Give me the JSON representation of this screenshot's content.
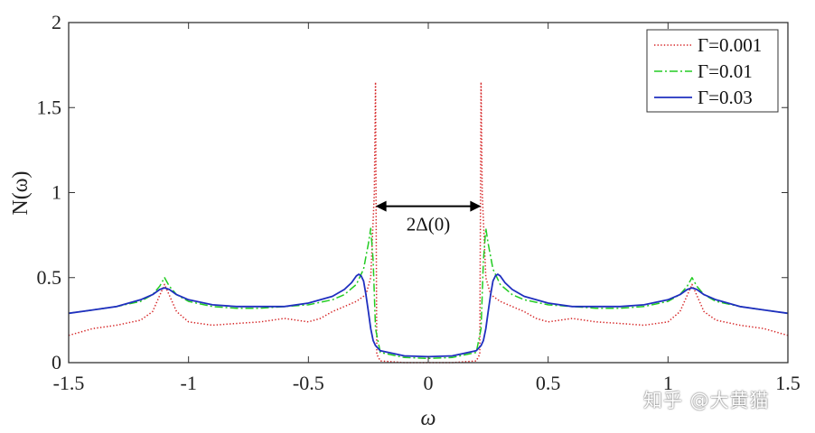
{
  "chart_data": {
    "type": "line",
    "xlabel": "ω",
    "ylabel": "N(ω)",
    "xlim": [
      -1.5,
      1.5
    ],
    "ylim": [
      0,
      2
    ],
    "xticks": [
      "-1.5",
      "-1",
      "-0.5",
      "0",
      "0.5",
      "1",
      "1.5"
    ],
    "yticks": [
      "0",
      "0.5",
      "1",
      "1.5",
      "2"
    ],
    "grid": false,
    "legend_position": "top-right",
    "annotation": {
      "text": "2Δ(0)",
      "x_from": -0.22,
      "x_to": 0.22,
      "y": 0.92
    },
    "series": [
      {
        "name": "Γ=0.001",
        "color": "#d62728",
        "style": "dotted",
        "x": [
          -1.5,
          -1.4,
          -1.3,
          -1.2,
          -1.15,
          -1.1,
          -1.05,
          -1.0,
          -0.9,
          -0.8,
          -0.7,
          -0.6,
          -0.5,
          -0.45,
          -0.4,
          -0.35,
          -0.3,
          -0.26,
          -0.24,
          -0.225,
          -0.22,
          -0.215,
          -0.2,
          -0.1,
          0,
          0.1,
          0.2,
          0.215,
          0.22,
          0.225,
          0.24,
          0.26,
          0.3,
          0.35,
          0.4,
          0.45,
          0.5,
          0.6,
          0.7,
          0.8,
          0.9,
          1.0,
          1.05,
          1.1,
          1.15,
          1.2,
          1.3,
          1.4,
          1.5
        ],
        "y": [
          0.16,
          0.2,
          0.22,
          0.25,
          0.3,
          0.46,
          0.3,
          0.24,
          0.22,
          0.23,
          0.24,
          0.26,
          0.24,
          0.26,
          0.3,
          0.33,
          0.36,
          0.4,
          0.5,
          1.0,
          1.65,
          0.05,
          0.01,
          0.0,
          0.0,
          0.0,
          0.01,
          0.05,
          1.65,
          1.0,
          0.5,
          0.4,
          0.36,
          0.33,
          0.3,
          0.26,
          0.24,
          0.26,
          0.24,
          0.23,
          0.22,
          0.24,
          0.3,
          0.46,
          0.3,
          0.25,
          0.22,
          0.2,
          0.16
        ]
      },
      {
        "name": "Γ=0.01",
        "color": "#22cc22",
        "style": "dashdot",
        "x": [
          -1.5,
          -1.4,
          -1.3,
          -1.2,
          -1.15,
          -1.12,
          -1.1,
          -1.08,
          -1.05,
          -1.0,
          -0.9,
          -0.8,
          -0.7,
          -0.6,
          -0.5,
          -0.4,
          -0.35,
          -0.3,
          -0.27,
          -0.25,
          -0.24,
          -0.23,
          -0.22,
          -0.2,
          -0.1,
          0,
          0.1,
          0.2,
          0.22,
          0.23,
          0.24,
          0.25,
          0.27,
          0.3,
          0.35,
          0.4,
          0.5,
          0.6,
          0.7,
          0.8,
          0.9,
          1.0,
          1.05,
          1.08,
          1.1,
          1.12,
          1.15,
          1.2,
          1.3,
          1.4,
          1.5
        ],
        "y": [
          0.29,
          0.31,
          0.33,
          0.36,
          0.4,
          0.45,
          0.5,
          0.45,
          0.4,
          0.36,
          0.33,
          0.32,
          0.32,
          0.33,
          0.34,
          0.37,
          0.4,
          0.46,
          0.55,
          0.7,
          0.79,
          0.6,
          0.2,
          0.06,
          0.03,
          0.025,
          0.03,
          0.06,
          0.2,
          0.6,
          0.79,
          0.7,
          0.55,
          0.46,
          0.4,
          0.37,
          0.34,
          0.33,
          0.32,
          0.32,
          0.33,
          0.36,
          0.4,
          0.45,
          0.5,
          0.45,
          0.4,
          0.36,
          0.33,
          0.31,
          0.29
        ]
      },
      {
        "name": "Γ=0.03",
        "color": "#1f2fbf",
        "style": "solid",
        "x": [
          -1.5,
          -1.4,
          -1.3,
          -1.2,
          -1.15,
          -1.12,
          -1.1,
          -1.08,
          -1.05,
          -1.0,
          -0.9,
          -0.8,
          -0.7,
          -0.6,
          -0.5,
          -0.45,
          -0.4,
          -0.35,
          -0.32,
          -0.3,
          -0.29,
          -0.28,
          -0.27,
          -0.26,
          -0.25,
          -0.24,
          -0.23,
          -0.22,
          -0.2,
          -0.1,
          0,
          0.1,
          0.2,
          0.22,
          0.23,
          0.24,
          0.25,
          0.26,
          0.27,
          0.28,
          0.29,
          0.3,
          0.32,
          0.35,
          0.4,
          0.45,
          0.5,
          0.6,
          0.7,
          0.8,
          0.9,
          1.0,
          1.05,
          1.08,
          1.1,
          1.12,
          1.15,
          1.2,
          1.3,
          1.4,
          1.5
        ],
        "y": [
          0.29,
          0.31,
          0.33,
          0.37,
          0.4,
          0.43,
          0.44,
          0.43,
          0.4,
          0.37,
          0.34,
          0.33,
          0.33,
          0.33,
          0.35,
          0.37,
          0.39,
          0.43,
          0.47,
          0.51,
          0.52,
          0.51,
          0.48,
          0.4,
          0.3,
          0.2,
          0.13,
          0.1,
          0.07,
          0.04,
          0.035,
          0.04,
          0.07,
          0.1,
          0.13,
          0.2,
          0.3,
          0.4,
          0.48,
          0.51,
          0.52,
          0.51,
          0.47,
          0.43,
          0.39,
          0.37,
          0.35,
          0.33,
          0.33,
          0.33,
          0.34,
          0.37,
          0.4,
          0.43,
          0.44,
          0.43,
          0.4,
          0.37,
          0.33,
          0.31,
          0.29
        ]
      }
    ]
  },
  "watermark": "知乎 @大黄猫"
}
